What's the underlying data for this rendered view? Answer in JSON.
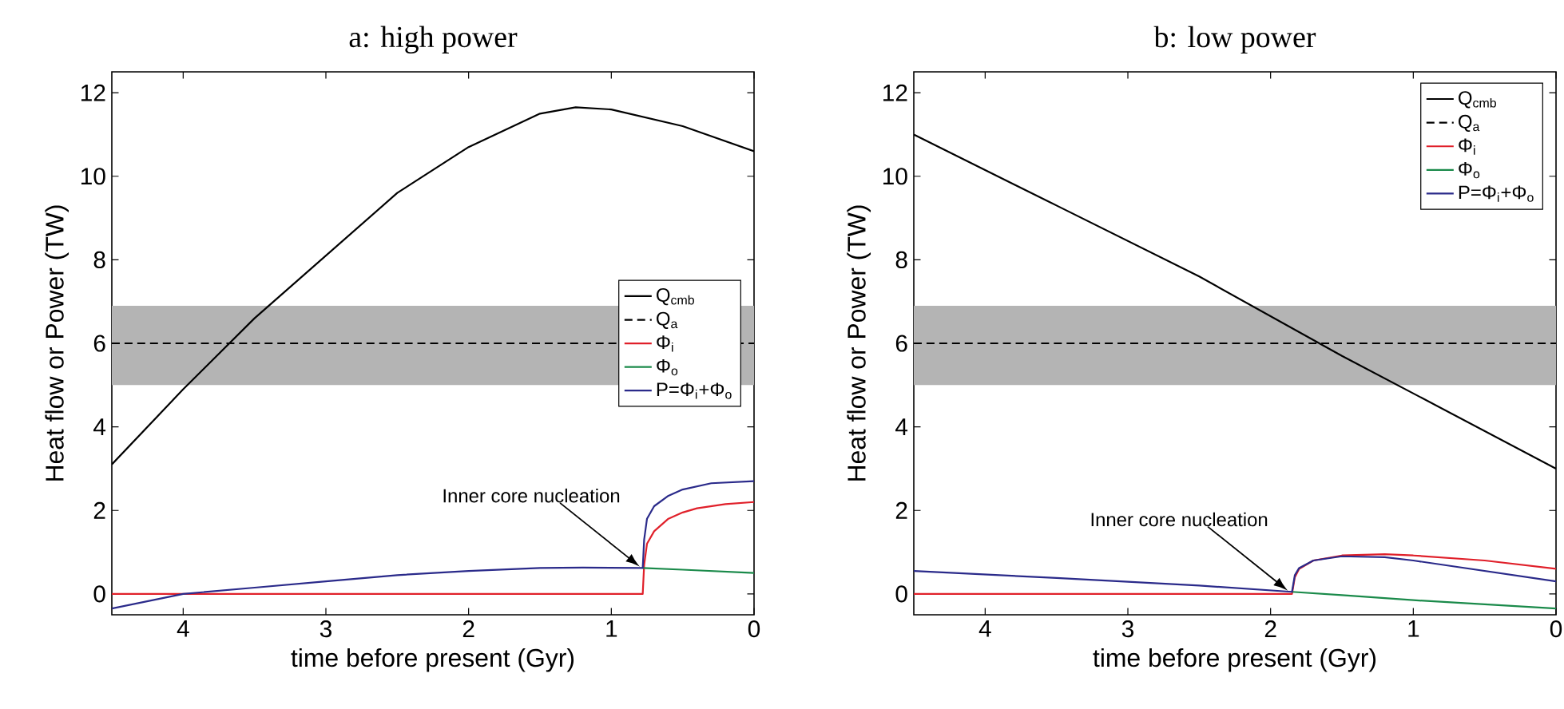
{
  "chart_data": [
    {
      "type": "line",
      "title": "a: high power",
      "xlabel": "time before present (Gyr)",
      "ylabel": "Heat flow or Power (TW)",
      "xlim": [
        4.5,
        0
      ],
      "ylim": [
        -0.5,
        12.5
      ],
      "xticks": [
        4,
        3,
        2,
        1,
        0
      ],
      "yticks": [
        0,
        2,
        4,
        6,
        8,
        10,
        12
      ],
      "legend": "right",
      "grid": false,
      "bands": [
        {
          "axis": "y",
          "from": 5,
          "to": 6.9,
          "color": "#b4b4b4"
        }
      ],
      "annotations": [
        {
          "text": "Inner core nucleation",
          "x": 0.8,
          "y": 0.65
        }
      ],
      "series": [
        {
          "name": "Q$_{cmb}$",
          "color": "#000000",
          "line_style": "solid",
          "x": [
            4.5,
            4,
            3.5,
            3,
            2.5,
            2,
            1.5,
            1.25,
            1,
            0.5,
            0
          ],
          "values": [
            3.1,
            4.9,
            6.6,
            8.1,
            9.6,
            10.7,
            11.5,
            11.65,
            11.6,
            11.2,
            10.6
          ]
        },
        {
          "name": "Q$_{a}$",
          "color": "#000000",
          "line_style": "dashed",
          "x": [
            4.5,
            0
          ],
          "values": [
            6,
            6
          ]
        },
        {
          "name": "Φ$_{i}$",
          "color": "#e0202a",
          "line_style": "solid",
          "x": [
            4.5,
            0.78,
            0.77,
            0.75,
            0.7,
            0.6,
            0.5,
            0.4,
            0.2,
            0
          ],
          "values": [
            0,
            0,
            0.7,
            1.2,
            1.5,
            1.8,
            1.95,
            2.05,
            2.15,
            2.2
          ]
        },
        {
          "name": "Φ$_{o}$",
          "color": "#1a8a4a",
          "line_style": "solid",
          "x": [
            0.78,
            0.5,
            0
          ],
          "values": [
            0.62,
            0.58,
            0.5
          ]
        },
        {
          "name": "P=Φ$_{i}$+Φ$_{o}$",
          "color": "#2a2a8a",
          "line_style": "solid",
          "x": [
            4.5,
            4,
            3.5,
            3,
            2.5,
            2,
            1.5,
            1.2,
            0.78,
            0.77,
            0.75,
            0.7,
            0.6,
            0.5,
            0.3,
            0
          ],
          "values": [
            -0.35,
            0,
            0.15,
            0.3,
            0.45,
            0.55,
            0.62,
            0.63,
            0.62,
            1.3,
            1.8,
            2.1,
            2.35,
            2.5,
            2.65,
            2.7
          ]
        }
      ]
    },
    {
      "type": "line",
      "title": "b: low power",
      "xlabel": "time before present (Gyr)",
      "ylabel": "Heat flow or Power (TW)",
      "xlim": [
        4.5,
        0
      ],
      "ylim": [
        -0.5,
        12.5
      ],
      "xticks": [
        4,
        3,
        2,
        1,
        0
      ],
      "yticks": [
        0,
        2,
        4,
        6,
        8,
        10,
        12
      ],
      "legend": "top right",
      "grid": false,
      "bands": [
        {
          "axis": "y",
          "from": 5,
          "to": 6.9,
          "color": "#b4b4b4"
        }
      ],
      "annotations": [
        {
          "text": "Inner core nucleation",
          "x": 1.88,
          "y": 0.08
        }
      ],
      "series": [
        {
          "name": "Q$_{cmb}$",
          "color": "#000000",
          "line_style": "solid",
          "x": [
            4.5,
            3.5,
            2.5,
            1.5,
            1,
            0.5,
            0
          ],
          "values": [
            11,
            9.3,
            7.6,
            5.7,
            4.8,
            3.9,
            3
          ]
        },
        {
          "name": "Q$_{a}$",
          "color": "#000000",
          "line_style": "dashed",
          "x": [
            4.5,
            0
          ],
          "values": [
            6,
            6
          ]
        },
        {
          "name": "Φ$_{i}$",
          "color": "#e0202a",
          "line_style": "solid",
          "x": [
            4.5,
            1.85,
            1.83,
            1.8,
            1.7,
            1.5,
            1.2,
            1,
            0.5,
            0
          ],
          "values": [
            0,
            0,
            0.4,
            0.6,
            0.8,
            0.92,
            0.95,
            0.92,
            0.8,
            0.6
          ]
        },
        {
          "name": "Φ$_{o}$",
          "color": "#1a8a4a",
          "line_style": "solid",
          "x": [
            1.85,
            1.5,
            1,
            0.5,
            0
          ],
          "values": [
            0.05,
            -0.03,
            -0.15,
            -0.25,
            -0.35
          ]
        },
        {
          "name": "P=Φ$_{i}$+Φ$_{o}$",
          "color": "#2a2a8a",
          "line_style": "solid",
          "x": [
            4.5,
            3.5,
            2.5,
            1.85,
            1.83,
            1.8,
            1.7,
            1.5,
            1.2,
            1,
            0.5,
            0
          ],
          "values": [
            0.55,
            0.38,
            0.2,
            0.05,
            0.45,
            0.62,
            0.8,
            0.9,
            0.88,
            0.8,
            0.55,
            0.3
          ]
        }
      ]
    }
  ]
}
